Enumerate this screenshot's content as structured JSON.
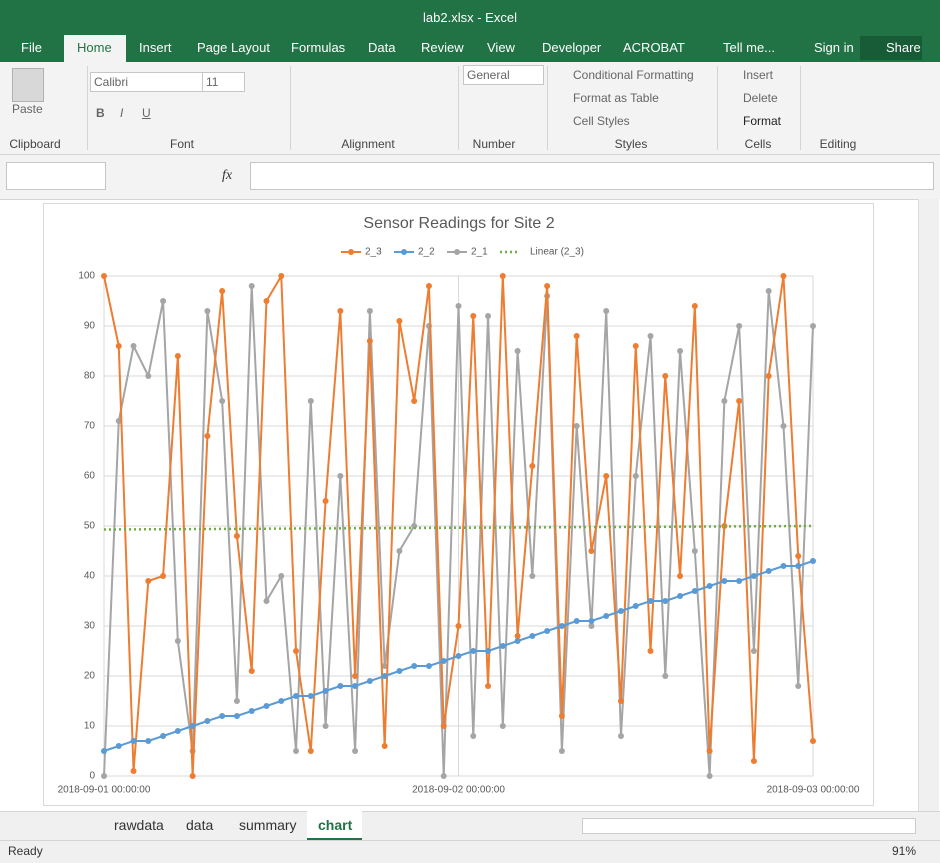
{
  "window": {
    "title": "lab2.xlsx - Excel"
  },
  "ribbon": {
    "tabs": [
      "File",
      "Home",
      "Insert",
      "Page Layout",
      "Formulas",
      "Data",
      "Review",
      "View",
      "Developer",
      "ACROBAT",
      "Tell me...",
      "Sign in",
      "Share"
    ],
    "groups": [
      "Clipboard",
      "Font",
      "Alignment",
      "Number",
      "Styles",
      "Cells",
      "Editing"
    ],
    "controls": {
      "paste": "Paste",
      "font_name": "Calibri",
      "font_size": "11",
      "bold": "B",
      "italic": "I",
      "underline": "U",
      "number_format": "General",
      "conditional_formatting": "Conditional Formatting",
      "format_as_table": "Format as Table",
      "cell_styles": "Cell Styles",
      "insert": "Insert",
      "delete": "Delete",
      "format": "Format"
    }
  },
  "formula_bar": {
    "fx": "fx"
  },
  "chart_data": {
    "type": "line",
    "title": "Sensor Readings for Site 2",
    "x": [
      0,
      1,
      2,
      3,
      4,
      5,
      6,
      7,
      8,
      9,
      10,
      11,
      12,
      13,
      14,
      15,
      16,
      17,
      18,
      19,
      20,
      21,
      22,
      23,
      24,
      25,
      26,
      27,
      28,
      29,
      30,
      31,
      32,
      33,
      34,
      35,
      36,
      37,
      38,
      39,
      40,
      41,
      42,
      43,
      44,
      45,
      46,
      47,
      48
    ],
    "xlim": [
      0,
      48
    ],
    "xticks": [
      {
        "value": 0,
        "label": "2018-09-01 00:00:00"
      },
      {
        "value": 24,
        "label": "2018-09-02 00:00:00"
      },
      {
        "value": 48,
        "label": "2018-09-03 00:00:00"
      }
    ],
    "ylim": [
      0,
      100
    ],
    "yticks": [
      0,
      10,
      20,
      30,
      40,
      50,
      60,
      70,
      80,
      90,
      100
    ],
    "grid": true,
    "legend": "top",
    "series": [
      {
        "name": "2_3",
        "color": "#ed7d31",
        "values": [
          100,
          86,
          1,
          39,
          40,
          84,
          0,
          68,
          97,
          48,
          21,
          95,
          100,
          25,
          5,
          55,
          93,
          20,
          87,
          6,
          91,
          75,
          98,
          10,
          30,
          92,
          18,
          100,
          28,
          62,
          98,
          12,
          88,
          45,
          60,
          15,
          86,
          25,
          80,
          40,
          94,
          5,
          50,
          75,
          3,
          80,
          100,
          44,
          7
        ]
      },
      {
        "name": "2_2",
        "color": "#5b9bd5",
        "values": [
          5,
          6,
          7,
          7,
          8,
          9,
          10,
          11,
          12,
          12,
          13,
          14,
          15,
          16,
          16,
          17,
          18,
          18,
          19,
          20,
          21,
          22,
          22,
          23,
          24,
          25,
          25,
          26,
          27,
          28,
          29,
          30,
          31,
          31,
          32,
          33,
          34,
          35,
          35,
          36,
          37,
          38,
          39,
          39,
          40,
          41,
          42,
          42,
          43
        ]
      },
      {
        "name": "2_1",
        "color": "#a5a5a5",
        "values": [
          0,
          71,
          86,
          80,
          95,
          27,
          5,
          93,
          75,
          15,
          98,
          35,
          40,
          5,
          75,
          10,
          60,
          5,
          93,
          22,
          45,
          50,
          90,
          0,
          94,
          8,
          92,
          10,
          85,
          40,
          96,
          5,
          70,
          30,
          93,
          8,
          60,
          88,
          20,
          85,
          45,
          0,
          75,
          90,
          25,
          97,
          70,
          18,
          90
        ]
      }
    ],
    "trendline": {
      "name": "Linear (2_3)",
      "color": "#70ad47",
      "x": [
        0,
        48
      ],
      "values": [
        49.3,
        50
      ]
    }
  },
  "sheets": [
    "rawdata",
    "data",
    "summary",
    "chart"
  ],
  "status": "Ready",
  "zoom": "91%"
}
